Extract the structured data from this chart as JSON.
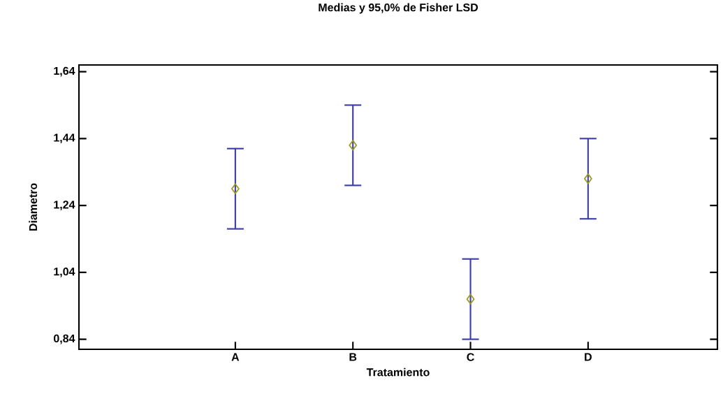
{
  "chart_data": {
    "type": "scatter",
    "title": "Medias y 95,0% de Fisher LSD",
    "xlabel": "Tratamiento",
    "ylabel": "Diametro",
    "categories": [
      "A",
      "B",
      "C",
      "D"
    ],
    "series": [
      {
        "color": "#9a9a1c",
        "values": [
          1.29,
          1.42,
          0.96,
          1.32
        ],
        "errors": [
          0.12,
          0.12,
          0.12,
          0.12
        ]
      }
    ],
    "ylim": [
      0.81,
      1.66
    ],
    "yticks": [
      {
        "value": 0.84,
        "label": "0,84"
      },
      {
        "value": 1.04,
        "label": "1,04"
      },
      {
        "value": 1.24,
        "label": "1,24"
      },
      {
        "value": 1.44,
        "label": "1,44"
      },
      {
        "value": 1.64,
        "label": "1,64"
      }
    ],
    "marker": "diamond",
    "grid": false
  }
}
